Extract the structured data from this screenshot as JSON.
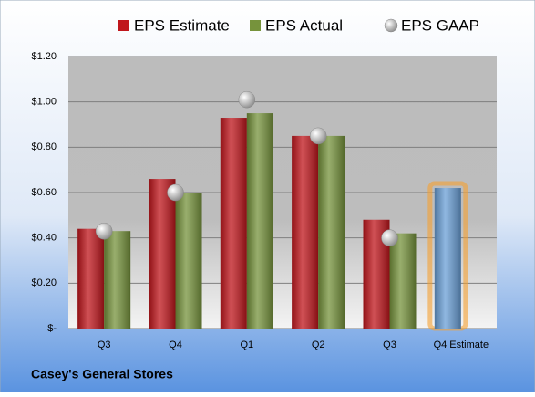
{
  "chart_data": {
    "type": "bar",
    "title": "Casey's General Stores",
    "categories": [
      "Q3",
      "Q4",
      "Q1",
      "Q2",
      "Q3",
      "Q4 Estimate"
    ],
    "series": [
      {
        "name": "EPS Estimate",
        "color": "#c0161c",
        "point_colors": [
          "#c0161c",
          "#c0161c",
          "#c0161c",
          "#c0161c",
          "#c0161c",
          "#6a9fd6"
        ],
        "values": [
          0.44,
          0.66,
          0.93,
          0.85,
          0.48,
          0.62
        ]
      },
      {
        "name": "EPS Actual",
        "color": "#76933c",
        "values": [
          0.43,
          0.6,
          0.95,
          0.85,
          0.42,
          null
        ]
      },
      {
        "name": "EPS GAAP",
        "color": "#a6a6a6",
        "marker": "circle",
        "values": [
          0.43,
          0.6,
          1.01,
          0.85,
          0.4,
          null
        ]
      }
    ],
    "ylim": [
      0,
      1.2
    ],
    "yticks": [
      {
        "value": 0,
        "label": "$-"
      },
      {
        "value": 0.2,
        "label": "$0.20"
      },
      {
        "value": 0.4,
        "label": "$0.40"
      },
      {
        "value": 0.6,
        "label": "$0.60"
      },
      {
        "value": 0.8,
        "label": "$0.80"
      },
      {
        "value": 1.0,
        "label": "$1.00"
      },
      {
        "value": 1.2,
        "label": "$1.20"
      }
    ],
    "grid": true,
    "legend": "top"
  }
}
